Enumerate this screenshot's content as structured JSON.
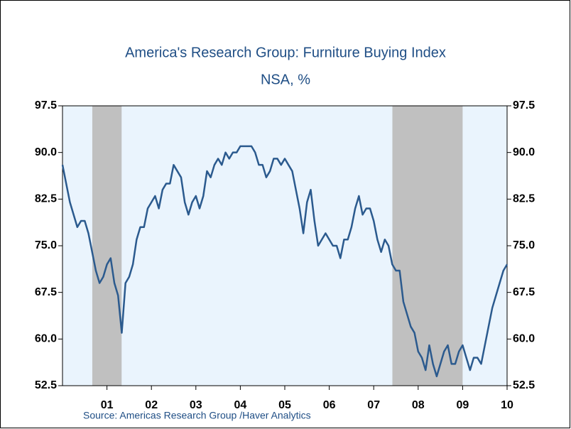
{
  "chart_data": {
    "type": "line",
    "title": "America's Research Group: Furniture Buying Index",
    "subtitle": "NSA, %",
    "source": "Source:  Americas Research Group /Haver Analytics",
    "x": [
      2000.5,
      2000.583,
      2000.667,
      2000.75,
      2000.833,
      2000.917,
      2001,
      2001.083,
      2001.167,
      2001.25,
      2001.333,
      2001.417,
      2001.5,
      2001.583,
      2001.667,
      2001.75,
      2001.833,
      2001.917,
      2002,
      2002.083,
      2002.167,
      2002.25,
      2002.333,
      2002.417,
      2002.5,
      2002.583,
      2002.667,
      2002.75,
      2002.833,
      2002.917,
      2003,
      2003.083,
      2003.167,
      2003.25,
      2003.333,
      2003.417,
      2003.5,
      2003.583,
      2003.667,
      2003.75,
      2003.833,
      2003.917,
      2004,
      2004.083,
      2004.167,
      2004.25,
      2004.333,
      2004.417,
      2004.5,
      2004.583,
      2004.667,
      2004.75,
      2004.833,
      2004.917,
      2005,
      2005.083,
      2005.167,
      2005.25,
      2005.333,
      2005.417,
      2005.5,
      2005.583,
      2005.667,
      2005.75,
      2005.833,
      2005.917,
      2006,
      2006.083,
      2006.167,
      2006.25,
      2006.333,
      2006.417,
      2006.5,
      2006.583,
      2006.667,
      2006.75,
      2006.833,
      2006.917,
      2007,
      2007.083,
      2007.167,
      2007.25,
      2007.333,
      2007.417,
      2007.5,
      2007.583,
      2007.667,
      2007.75,
      2007.833,
      2007.917,
      2008,
      2008.083,
      2008.167,
      2008.25,
      2008.333,
      2008.417,
      2008.5,
      2008.583,
      2008.667,
      2008.75,
      2008.833,
      2008.917,
      2009,
      2009.083,
      2009.167,
      2009.25,
      2009.333,
      2009.417,
      2009.5,
      2009.583,
      2009.667,
      2009.75,
      2009.833,
      2009.917,
      2010,
      2010.083,
      2010.167,
      2010.25,
      2010.333,
      2010.417,
      2010.5
    ],
    "series": [
      {
        "name": "Furniture Buying Index",
        "color": "#2b5a8e",
        "values": [
          88,
          85,
          82,
          80,
          78,
          79,
          79,
          77,
          74,
          71,
          69,
          70,
          72,
          73,
          69,
          67,
          61,
          69,
          70,
          72,
          76,
          78,
          78,
          81,
          82,
          83,
          81,
          84,
          85,
          85,
          88,
          87,
          86,
          82,
          80,
          82,
          83,
          81,
          83,
          87,
          86,
          88,
          89,
          88,
          90,
          89,
          90,
          90,
          91,
          91,
          91,
          91,
          90,
          88,
          88,
          86,
          87,
          89,
          89,
          88,
          89,
          88,
          87,
          84,
          81,
          77,
          82,
          84,
          79,
          75,
          76,
          77,
          76,
          75,
          75,
          73,
          76,
          76,
          78,
          81,
          83,
          80,
          81,
          81,
          79,
          76,
          74,
          76,
          75,
          72,
          71,
          71,
          66,
          64,
          62,
          61,
          58,
          57,
          55,
          59,
          56,
          54,
          56,
          58,
          59,
          56,
          56,
          58,
          59,
          57,
          55,
          57,
          57,
          56,
          59,
          62,
          65,
          67,
          69,
          71,
          72
        ]
      }
    ],
    "shading": [
      {
        "start": 2001.17,
        "end": 2001.83
      },
      {
        "start": 2007.92,
        "end": 2009.5
      }
    ],
    "shading_color": "#c0c0c0",
    "plot_background": "#eaf4fd",
    "xlim": [
      2000.5,
      2010.5
    ],
    "xticks": [
      {
        "value": 2001.5,
        "label": "01"
      },
      {
        "value": 2002.5,
        "label": "02"
      },
      {
        "value": 2003.5,
        "label": "03"
      },
      {
        "value": 2004.5,
        "label": "04"
      },
      {
        "value": 2005.5,
        "label": "05"
      },
      {
        "value": 2006.5,
        "label": "06"
      },
      {
        "value": 2007.5,
        "label": "07"
      },
      {
        "value": 2008.5,
        "label": "08"
      },
      {
        "value": 2009.5,
        "label": "09"
      },
      {
        "value": 2010.5,
        "label": "10"
      }
    ],
    "ylim": [
      52.5,
      97.5
    ],
    "yticks": [
      {
        "value": 97.5,
        "label": "97.5"
      },
      {
        "value": 90,
        "label": "90.0"
      },
      {
        "value": 82.5,
        "label": "82.5"
      },
      {
        "value": 75,
        "label": "75.0"
      },
      {
        "value": 67.5,
        "label": "67.5"
      },
      {
        "value": 60,
        "label": "60.0"
      },
      {
        "value": 52.5,
        "label": "52.5"
      }
    ],
    "right_axis": true
  }
}
